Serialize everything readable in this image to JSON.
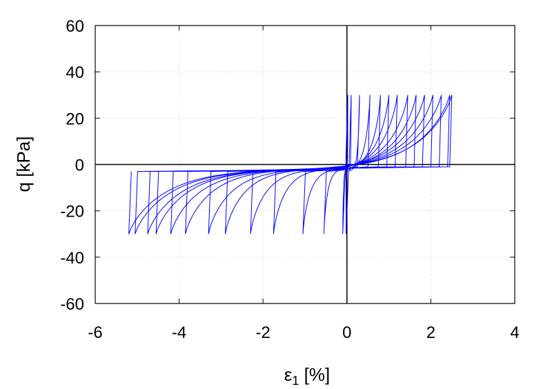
{
  "chart_data": {
    "type": "line",
    "xlabel_main": "ε",
    "xlabel_sub": "1",
    "xlabel_unit": " [%]",
    "ylabel": "q [kPa]",
    "xlim": [
      -6,
      4
    ],
    "ylim": [
      -60,
      60
    ],
    "x_ticks": [
      -6,
      -4,
      -2,
      0,
      2,
      4
    ],
    "y_ticks": [
      -60,
      -40,
      -20,
      0,
      20,
      40,
      60
    ],
    "grid": true,
    "zero_lines": true,
    "q_amplitude": 30,
    "line_color": "#0000ff",
    "series": [
      {
        "cycles": [
          {
            "x_peak": 0.02,
            "x_trough": -0.02
          },
          {
            "x_peak": 0.1,
            "x_trough": -0.1
          },
          {
            "x_peak": 0.3,
            "x_trough": -0.55
          },
          {
            "x_peak": 0.55,
            "x_trough": -1.05
          },
          {
            "x_peak": 0.8,
            "x_trough": -1.75
          },
          {
            "x_peak": 1.0,
            "x_trough": -2.3
          },
          {
            "x_peak": 1.2,
            "x_trough": -2.9
          },
          {
            "x_peak": 1.45,
            "x_trough": -3.3
          },
          {
            "x_peak": 1.65,
            "x_trough": -3.85
          },
          {
            "x_peak": 1.85,
            "x_trough": -4.2
          },
          {
            "x_peak": 2.05,
            "x_trough": -4.55
          },
          {
            "x_peak": 2.25,
            "x_trough": -4.75
          },
          {
            "x_peak": 2.45,
            "x_trough": -5.05
          },
          {
            "x_peak": 2.5,
            "x_trough": -5.2
          }
        ]
      }
    ]
  }
}
